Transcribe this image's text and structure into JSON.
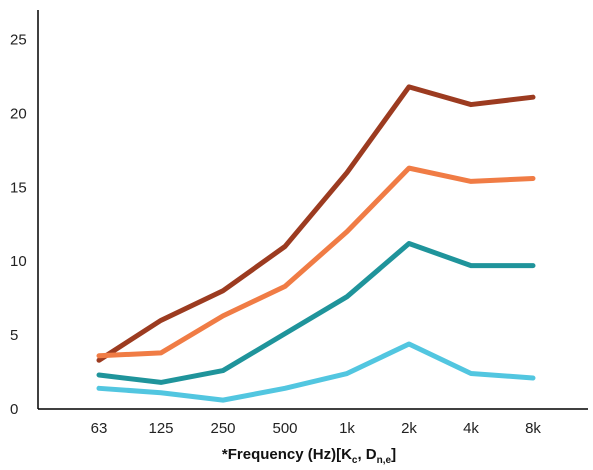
{
  "chart_data": {
    "type": "line",
    "title": "",
    "xlabel": "*Frequency (Hz)[K",
    "xlabel_sub1": "c",
    "xlabel_mid": ", D",
    "xlabel_sub2": "n,e",
    "xlabel_end": "]",
    "ylabel": "",
    "categories": [
      "63",
      "125",
      "250",
      "500",
      "1k",
      "2k",
      "4k",
      "8k"
    ],
    "ylim": [
      0,
      27
    ],
    "yticks": [
      0,
      5,
      10,
      15,
      20,
      25
    ],
    "grid": false,
    "series": [
      {
        "color": "#9c3b20",
        "values": [
          3.3,
          6.0,
          8.0,
          11.0,
          16.0,
          21.8,
          20.6,
          21.1
        ]
      },
      {
        "color": "#f07c45",
        "values": [
          3.6,
          3.8,
          6.3,
          8.3,
          12.0,
          16.3,
          15.4,
          15.6
        ]
      },
      {
        "color": "#1f949b",
        "values": [
          2.3,
          1.8,
          2.6,
          5.1,
          7.6,
          11.2,
          9.7,
          9.7
        ]
      },
      {
        "color": "#52c6e0",
        "values": [
          1.4,
          1.1,
          0.6,
          1.4,
          2.4,
          4.4,
          2.4,
          2.1
        ]
      }
    ]
  }
}
